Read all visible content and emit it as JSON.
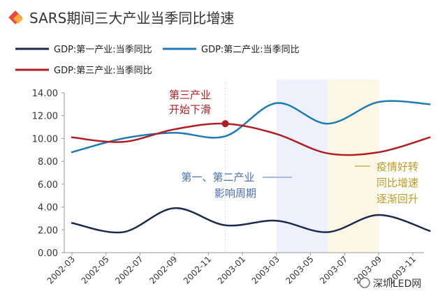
{
  "chart_data": {
    "type": "line",
    "title": "SARS期间三大产业当季同比增速",
    "x": [
      "2002-03",
      "2002-06",
      "2002-09",
      "2002-12",
      "2003-03",
      "2003-06",
      "2003-09",
      "2003-12"
    ],
    "x_tick_labels": [
      "2002-03",
      "2002-05",
      "2002-07",
      "2002-09",
      "2002-11",
      "2003-01",
      "2003-03",
      "2003-05",
      "2003-07",
      "2003-09",
      "2003-11"
    ],
    "y_tick_labels": [
      "0.00",
      "2.00",
      "4.00",
      "6.00",
      "8.00",
      "10.00",
      "12.00",
      "14.00"
    ],
    "ylim": [
      0,
      14
    ],
    "grid": false,
    "legend_position": "top-left",
    "series": [
      {
        "name": "GDP:第一产业:当季同比",
        "color": "#1b2a4e",
        "values": [
          2.6,
          1.8,
          3.9,
          2.4,
          2.8,
          1.8,
          3.3,
          1.9
        ]
      },
      {
        "name": "GDP:第二产业:当季同比",
        "color": "#1f7bb6",
        "values": [
          8.8,
          10.0,
          10.5,
          10.2,
          13.1,
          11.3,
          13.2,
          13.0
        ]
      },
      {
        "name": "GDP:第三产业:当季同比",
        "color": "#b01e23",
        "values": [
          10.1,
          9.7,
          10.8,
          11.3,
          10.4,
          8.7,
          8.8,
          10.1
        ]
      }
    ],
    "annotations": {
      "third_industry": {
        "lines": [
          "第三产业",
          "开始下滑"
        ],
        "color": "#b01e23",
        "x": "2002-12",
        "y": 11.3
      },
      "first_second": {
        "lines": [
          "第一、第二产业",
          "影响周期"
        ],
        "color": "#4a6fb3",
        "band": [
          "2003-03",
          "2003-06"
        ],
        "band_color": "#eef1fb"
      },
      "recovery": {
        "lines": [
          "疫情好转",
          "同比增速",
          "逐渐回升"
        ],
        "color": "#c29a1e",
        "band": [
          "2003-06",
          "2003-09"
        ],
        "band_color": "#fdf8e6"
      }
    }
  },
  "watermark": "深圳LED网"
}
